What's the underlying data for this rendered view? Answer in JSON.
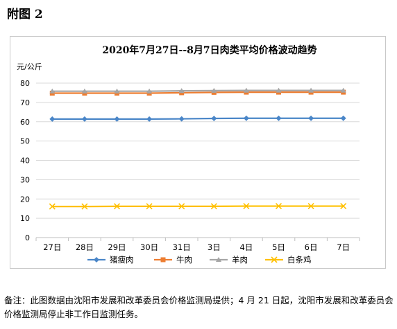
{
  "page": {
    "heading": "附图 2",
    "note": "备注：此图数据由沈阳市发展和改革委员会价格监测局提供；4 月 21 日起，沈阳市发展和改革委员会价格监测局停止非工作日监测任务。"
  },
  "chart_data": {
    "type": "line",
    "title": "2020年7月27日--8月7日肉类平均价格波动趋势",
    "ylabel": "元/公斤",
    "xlabel": "",
    "ylim": [
      0,
      80
    ],
    "yticks": [
      0,
      10,
      20,
      30,
      40,
      50,
      60,
      70,
      80
    ],
    "grid": true,
    "legend_position": "bottom",
    "categories": [
      "27日",
      "28日",
      "29日",
      "30日",
      "31日",
      "3日",
      "4日",
      "5日",
      "6日",
      "7日"
    ],
    "series": [
      {
        "name": "猪瘦肉",
        "marker": "diamond",
        "color": "#4a86c8",
        "values": [
          61.4,
          61.4,
          61.4,
          61.4,
          61.5,
          61.7,
          61.8,
          61.8,
          61.8,
          61.8
        ]
      },
      {
        "name": "牛肉",
        "marker": "square",
        "color": "#ed7d31",
        "values": [
          74.8,
          74.8,
          74.8,
          74.8,
          75.0,
          75.2,
          75.3,
          75.3,
          75.3,
          75.3
        ]
      },
      {
        "name": "羊肉",
        "marker": "triangle",
        "color": "#a5a5a5",
        "values": [
          75.8,
          75.8,
          75.8,
          75.8,
          76.0,
          76.1,
          76.2,
          76.2,
          76.2,
          76.2
        ]
      },
      {
        "name": "白条鸡",
        "marker": "x",
        "color": "#ffc000",
        "values": [
          16.1,
          16.1,
          16.2,
          16.2,
          16.2,
          16.2,
          16.3,
          16.3,
          16.3,
          16.3
        ]
      }
    ]
  }
}
